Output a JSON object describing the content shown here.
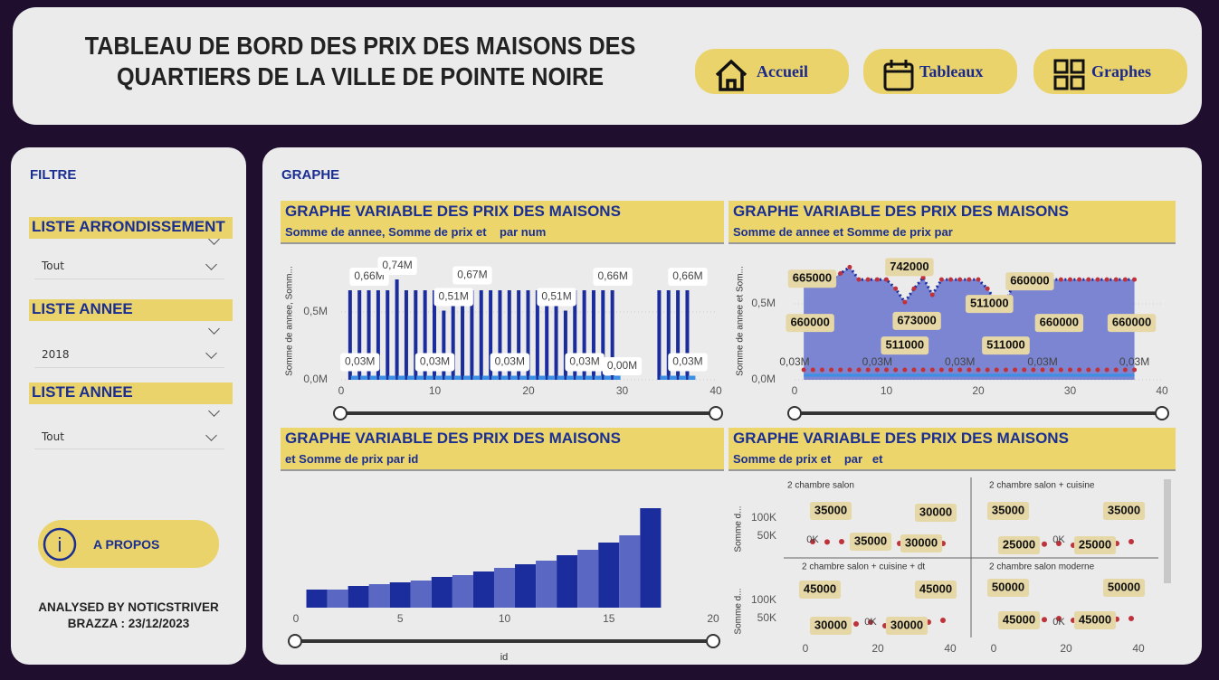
{
  "header": {
    "title": [
      "TABLEAU DE BORD DES PRIX DES MAISONS DES",
      "QUARTIERS DE LA VILLE DE POINTE NOIRE"
    ],
    "nav": [
      "Accueil",
      "Tableaux",
      "Graphes"
    ]
  },
  "sidebar": {
    "title": "FILTRE",
    "filters": [
      {
        "label": "LISTE ARRONDISSEMENT",
        "value": "Tout"
      },
      {
        "label": "LISTE ANNEE",
        "value": "2018"
      },
      {
        "label": "LISTE ANNEE",
        "value": "Tout"
      }
    ],
    "about": "A PROPOS",
    "credits": [
      "ANALYSED BY NOTICSTRIVER",
      "BRAZZA : 23/12/2023"
    ]
  },
  "main": {
    "title": "GRAPHE",
    "panels": [
      {
        "title": "GRAPHE VARIABLE DES PRIX DES MAISONS",
        "subtitle": "Somme de annee, Somme de prix et    par num",
        "chart": {
          "type": "bar",
          "ylabel": "Somme de annee, Somm...",
          "x": [
            1,
            2,
            3,
            4,
            5,
            6,
            7,
            8,
            9,
            10,
            11,
            12,
            13,
            14,
            15,
            16,
            17,
            18,
            19,
            20,
            21,
            22,
            23,
            24,
            25,
            26,
            27,
            28,
            29,
            30,
            31,
            32,
            33,
            34,
            35,
            36,
            37
          ],
          "series": [
            {
              "color": "#1b2c9c",
              "values": [
                660000,
                660000,
                660000,
                660000,
                660000,
                740000,
                660000,
                660000,
                660000,
                660000,
                510000,
                670000,
                660000,
                660000,
                660000,
                660000,
                660000,
                660000,
                660000,
                660000,
                660000,
                660000,
                660000,
                510000,
                660000,
                660000,
                660000,
                660000,
                660000,
                null,
                null,
                null,
                null,
                660000,
                660000,
                660000,
                660000
              ]
            },
            {
              "color": "#3d8fe3",
              "values": [
                30000,
                30000,
                30000,
                30000,
                30000,
                30000,
                30000,
                30000,
                30000,
                30000,
                30000,
                30000,
                30000,
                30000,
                30000,
                30000,
                30000,
                30000,
                30000,
                30000,
                30000,
                30000,
                30000,
                30000,
                30000,
                30000,
                30000,
                30000,
                30000,
                null,
                null,
                null,
                null,
                30000,
                30000,
                30000,
                30000
              ]
            }
          ],
          "xlim": [
            0,
            40
          ],
          "xticks": [
            0,
            10,
            20,
            30,
            40
          ],
          "ylim": [
            0,
            800000
          ],
          "yticks": [
            {
              "value": 0,
              "label": "0,0M"
            },
            {
              "value": 500000,
              "label": "0,5M"
            }
          ],
          "annotations": [
            {
              "x": 3,
              "value": 660000,
              "label": "0,66M"
            },
            {
              "x": 6,
              "value": 740000,
              "label": "0,74M"
            },
            {
              "x": 14,
              "value": 670000,
              "label": "0,67M"
            },
            {
              "x": 12,
              "value": 510000,
              "label": "0,51M"
            },
            {
              "x": 23,
              "value": 510000,
              "label": "0,51M"
            },
            {
              "x": 29,
              "value": 660000,
              "label": "0,66M"
            },
            {
              "x": 37,
              "value": 660000,
              "label": "0,66M"
            },
            {
              "x": 2,
              "value": 30000,
              "label": "0,03M"
            },
            {
              "x": 10,
              "value": 30000,
              "label": "0,03M"
            },
            {
              "x": 18,
              "value": 30000,
              "label": "0,03M"
            },
            {
              "x": 26,
              "value": 30000,
              "label": "0,03M"
            },
            {
              "x": 30,
              "value": 0,
              "label": "0,00M"
            },
            {
              "x": 37,
              "value": 30000,
              "label": "0,03M"
            }
          ]
        }
      },
      {
        "title": "GRAPHE VARIABLE DES PRIX DES MAISONS",
        "subtitle": "Somme de annee et Somme de prix par",
        "chart": {
          "type": "line",
          "ylabel": "Somme de annee et Som...",
          "x": [
            1,
            2,
            3,
            4,
            5,
            6,
            7,
            8,
            9,
            10,
            11,
            12,
            13,
            14,
            15,
            16,
            17,
            18,
            19,
            20,
            21,
            22,
            23,
            24,
            25,
            26,
            27,
            28,
            29,
            30,
            31,
            32,
            33,
            34,
            35,
            36,
            37
          ],
          "series": [
            {
              "color": "#1b2c9c",
              "values": [
                660000,
                660000,
                665000,
                660000,
                700000,
                742000,
                660000,
                660000,
                660000,
                660000,
                600000,
                511000,
                600000,
                673000,
                560000,
                660000,
                660000,
                660000,
                660000,
                660000,
                600000,
                511000,
                511000,
                660000,
                660000,
                660000,
                660000,
                660000,
                660000,
                660000,
                660000,
                660000,
                660000,
                660000,
                660000,
                660000,
                660000
              ]
            },
            {
              "color": "#c0313a",
              "values": [
                30000,
                30000,
                30000,
                30000,
                30000,
                30000,
                30000,
                30000,
                30000,
                30000,
                30000,
                30000,
                30000,
                30000,
                30000,
                30000,
                30000,
                30000,
                30000,
                30000,
                30000,
                30000,
                30000,
                30000,
                30000,
                30000,
                30000,
                30000,
                30000,
                30000,
                30000,
                30000,
                30000,
                30000,
                30000,
                30000,
                30000
              ]
            }
          ],
          "xlim": [
            0,
            40
          ],
          "xticks": [
            0,
            10,
            20,
            30,
            40
          ],
          "ylim": [
            0,
            800000
          ],
          "yticks": [
            {
              "value": 0,
              "label": "0,0M"
            },
            {
              "value": 500000,
              "label": "0,5M"
            }
          ],
          "annotations": [
            {
              "x": 3,
              "value": 665000
            },
            {
              "x": 6,
              "value": 742000
            },
            {
              "x": 1,
              "value": 660000
            },
            {
              "x": 14,
              "value": 673000
            },
            {
              "x": 12,
              "value": 511000
            },
            {
              "x": 22,
              "value": 511000
            },
            {
              "x": 23,
              "value": 511000
            },
            {
              "x": 26,
              "value": 660000
            },
            {
              "x": 29,
              "value": 660000
            },
            {
              "x": 37,
              "value": 660000
            },
            {
              "x": 0,
              "value": 30000,
              "label": "0,03M"
            },
            {
              "x": 9,
              "value": 30000,
              "label": "0,03M"
            },
            {
              "x": 18,
              "value": 30000,
              "label": "0,03M"
            },
            {
              "x": 27,
              "value": 30000,
              "label": "0,03M"
            },
            {
              "x": 37,
              "value": 30000,
              "label": "0,03M"
            }
          ]
        }
      },
      {
        "title": "GRAPHE VARIABLE DES PRIX DES MAISONS",
        "subtitle": "et Somme de prix par id",
        "chart": {
          "type": "bar",
          "xlabel": "id",
          "x": [
            1,
            2,
            3,
            4,
            5,
            6,
            7,
            8,
            9,
            10,
            11,
            12,
            13,
            14,
            15,
            16,
            17
          ],
          "values": [
            10,
            10,
            12,
            13,
            14,
            15,
            17,
            18,
            20,
            22,
            24,
            26,
            29,
            32,
            36,
            40,
            55
          ],
          "colors": [
            "#1b2c9c",
            "#5a68c4"
          ],
          "xlim": [
            0,
            20
          ],
          "xticks": [
            0,
            5,
            10,
            15,
            20
          ]
        }
      },
      {
        "title": "GRAPHE VARIABLE DES PRIX DES MAISONS",
        "subtitle": "Somme de prix et    par   et",
        "chart": {
          "type": "small_multiples",
          "ylabel": "Somme d...",
          "xlim": [
            0,
            40
          ],
          "xticks": [
            0,
            20,
            40
          ],
          "ylim": [
            0,
            130000
          ],
          "yticks": [
            {
              "value": 50000,
              "label": "50K"
            },
            {
              "value": 100000,
              "label": "100K"
            }
          ],
          "x": [
            2,
            6,
            10,
            14,
            18,
            22,
            26,
            30,
            34,
            38
          ],
          "color": "#c0313a",
          "panels": [
            {
              "title": "2 chambre salon",
              "values": [
                35000,
                34000,
                35000,
                33000,
                35000,
                31000,
                30000,
                30000,
                30000,
                30000
              ],
              "annotations": [
                {
                  "x": 7,
                  "value": 35000
                },
                {
                  "x": 36,
                  "value": 30000
                },
                {
                  "x": 18,
                  "value": 35000
                },
                {
                  "x": 32,
                  "value": 30000
                },
                {
                  "x": 2,
                  "value": 0,
                  "label": "0K"
                }
              ]
            },
            {
              "title": "2 chambre salon + cuisine",
              "values": [
                35000,
                30000,
                25000,
                28000,
                30000,
                25000,
                26000,
                25000,
                30000,
                35000
              ],
              "annotations": [
                {
                  "x": 4,
                  "value": 35000
                },
                {
                  "x": 36,
                  "value": 35000
                },
                {
                  "x": 7,
                  "value": 25000
                },
                {
                  "x": 28,
                  "value": 25000
                },
                {
                  "x": 18,
                  "value": 0,
                  "label": "0K"
                }
              ]
            },
            {
              "title": "2 chambre salon + cuisine + dt",
              "values": [
                45000,
                40000,
                30000,
                35000,
                40000,
                30000,
                35000,
                30000,
                40000,
                45000
              ],
              "annotations": [
                {
                  "x": 4,
                  "value": 45000
                },
                {
                  "x": 36,
                  "value": 45000
                },
                {
                  "x": 7,
                  "value": 30000
                },
                {
                  "x": 28,
                  "value": 30000
                },
                {
                  "x": 18,
                  "value": 0,
                  "label": "0K"
                }
              ]
            },
            {
              "title": "2 chambre salon moderne",
              "values": [
                50000,
                48000,
                45000,
                47000,
                50000,
                45000,
                46000,
                45000,
                48000,
                50000
              ],
              "annotations": [
                {
                  "x": 4,
                  "value": 50000
                },
                {
                  "x": 36,
                  "value": 50000
                },
                {
                  "x": 7,
                  "value": 45000
                },
                {
                  "x": 28,
                  "value": 45000
                },
                {
                  "x": 18,
                  "value": 0,
                  "label": "0K"
                }
              ]
            }
          ]
        }
      }
    ]
  }
}
